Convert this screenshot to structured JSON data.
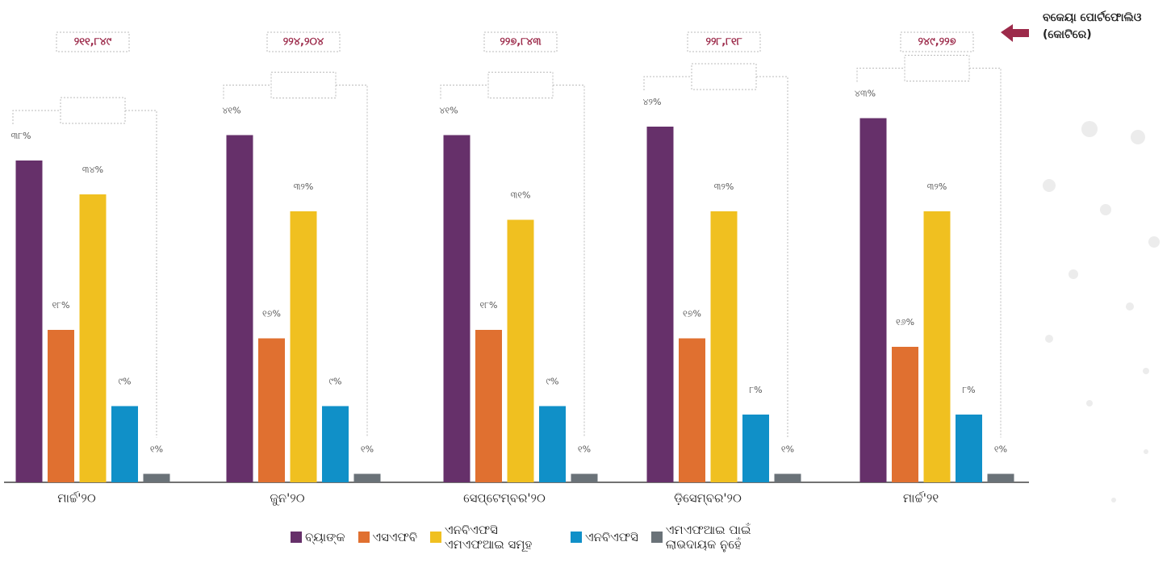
{
  "chart_data": {
    "type": "bar",
    "annotation": "ବକେୟା ପୋର୍ଟଫୋଲିଓ (କୋଟିରେ)",
    "categories": [
      "ମାର୍ଚ୍ଚ'୨୦",
      "ଜୁନ'୨୦",
      "ସେପ୍ଟେମ୍ବର'୨୦",
      "ଡ଼ିସେମ୍ବର'୨୦",
      "ମାର୍ଚ୍ଚ'୨୧"
    ],
    "portfolio_labels": [
      "୨୧୧,୮୪୯",
      "୨୨୪,୨୦୪",
      "୨୨୭,୮୪୩",
      "୨୨୮,୮୧୮",
      "୨୪୯,୨୨୭"
    ],
    "series": [
      {
        "name": "ବ୍ୟାଙ୍କ",
        "color": "#66306a",
        "values": [
          38,
          41,
          41,
          42,
          43
        ],
        "value_labels": [
          "୩୮%",
          "୪୧%",
          "୪୧%",
          "୪୨%",
          "୪୩%"
        ]
      },
      {
        "name": "ଏସଏଫବି",
        "color": "#e07030",
        "values": [
          18,
          17,
          18,
          17,
          16
        ],
        "value_labels": [
          "୧୮%",
          "୧୭%",
          "୧୮%",
          "୧୭%",
          "୧୬%"
        ]
      },
      {
        "name": "ଏନବିଏଫସି ଏମଏଫଆଇ ସମୂହ",
        "color": "#f0c020",
        "values": [
          34,
          32,
          31,
          32,
          32
        ],
        "value_labels": [
          "୩୪%",
          "୩୨%",
          "୩୧%",
          "୩୨%",
          "୩୨%"
        ]
      },
      {
        "name": "ଏନବିଏଫସି",
        "color": "#1090c8",
        "values": [
          9,
          9,
          9,
          8,
          8
        ],
        "value_labels": [
          "୯%",
          "୯%",
          "୯%",
          "୮%",
          "୮%"
        ]
      },
      {
        "name": "ଏମଏଫଆଇ ପାଇଁ ଲାଭଦାୟକ ନୁହେଁ",
        "color": "#6a7278",
        "values": [
          1,
          1,
          1,
          1,
          1
        ],
        "value_labels": [
          "୧%",
          "୧%",
          "୧%",
          "୧%",
          "୧%"
        ]
      }
    ]
  }
}
